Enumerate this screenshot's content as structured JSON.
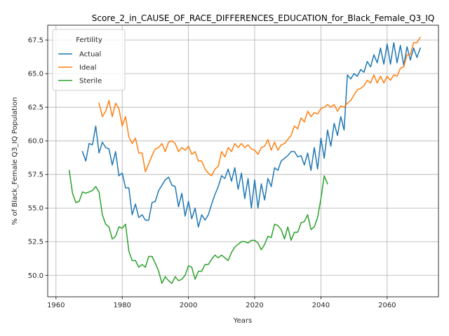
{
  "chart_data": {
    "type": "line",
    "title": "Score_2_in_CAUSE_OF_RACE_DIFFERENCES_EDUCATION_for_Black_Female_Q3_IQ",
    "xlabel": "Years",
    "ylabel": "% of Black_Female Q3_IQ Population",
    "xlim": [
      1957.5,
      2075.5
    ],
    "ylim": [
      48.4,
      68.6
    ],
    "xticks": [
      1960,
      1980,
      2000,
      2020,
      2040,
      2060
    ],
    "yticks": [
      50.0,
      52.5,
      55.0,
      57.5,
      60.0,
      62.5,
      65.0,
      67.5
    ],
    "grid": true,
    "legend": {
      "title": "Fertility",
      "placement": "upper left"
    },
    "series": [
      {
        "name": "Actual",
        "color": "#1f77b4",
        "x": [
          1968,
          1969,
          1970,
          1971,
          1972,
          1973,
          1974,
          1975,
          1976,
          1977,
          1978,
          1979,
          1980,
          1981,
          1982,
          1983,
          1984,
          1985,
          1986,
          1987,
          1988,
          1989,
          1990,
          1991,
          1992,
          1993,
          1994,
          1995,
          1996,
          1997,
          1998,
          1999,
          2000,
          2001,
          2002,
          2003,
          2004,
          2005,
          2006,
          2007,
          2008,
          2009,
          2010,
          2011,
          2012,
          2013,
          2014,
          2015,
          2016,
          2017,
          2018,
          2019,
          2020,
          2021,
          2022,
          2023,
          2024,
          2025,
          2026,
          2027,
          2028,
          2029,
          2030,
          2031,
          2032,
          2033,
          2034,
          2035,
          2036,
          2037,
          2038,
          2039,
          2040,
          2041,
          2042,
          2043,
          2044,
          2045,
          2046,
          2047,
          2048,
          2049,
          2050,
          2051,
          2052,
          2053,
          2054,
          2055,
          2056,
          2057,
          2058,
          2059,
          2060,
          2061,
          2062,
          2063,
          2064,
          2065,
          2066,
          2067,
          2068,
          2069,
          2070
        ],
        "y": [
          59.2,
          58.5,
          59.8,
          59.7,
          61.1,
          59.1,
          59.9,
          59.5,
          59.4,
          58.2,
          59.2,
          57.4,
          57.6,
          56.5,
          56.5,
          54.5,
          55.3,
          54.3,
          54.5,
          54.1,
          54.1,
          55.4,
          55.5,
          56.3,
          56.7,
          57.1,
          57.3,
          56.7,
          56.6,
          55.1,
          56.1,
          54.4,
          55.5,
          54.2,
          55.0,
          53.6,
          54.5,
          54.1,
          54.5,
          55.3,
          56.0,
          56.6,
          57.4,
          57.2,
          57.9,
          57.0,
          58.0,
          56.4,
          57.6,
          55.7,
          57.2,
          55.0,
          57.1,
          55.0,
          56.8,
          55.6,
          57.2,
          56.6,
          58.0,
          57.8,
          58.5,
          58.7,
          58.9,
          59.2,
          59.2,
          58.8,
          58.9,
          58.2,
          59.1,
          57.8,
          59.5,
          57.9,
          60.2,
          58.7,
          60.8,
          59.6,
          61.3,
          60.4,
          61.8,
          60.8,
          64.9,
          64.6,
          65.0,
          64.8,
          65.3,
          65.1,
          65.9,
          65.5,
          66.4,
          65.8,
          66.9,
          65.7,
          67.2,
          65.7,
          67.3,
          65.8,
          67.1,
          65.6,
          67.0,
          66.0,
          66.9,
          66.2,
          66.9
        ]
      },
      {
        "name": "Ideal",
        "color": "#ff7f0e",
        "x": [
          1973,
          1974,
          1975,
          1976,
          1977,
          1978,
          1979,
          1980,
          1981,
          1982,
          1983,
          1984,
          1985,
          1986,
          1987,
          1988,
          1989,
          1990,
          1991,
          1992,
          1993,
          1994,
          1995,
          1996,
          1997,
          1998,
          1999,
          2000,
          2001,
          2002,
          2003,
          2004,
          2005,
          2006,
          2007,
          2008,
          2009,
          2010,
          2011,
          2012,
          2013,
          2014,
          2015,
          2016,
          2017,
          2018,
          2019,
          2020,
          2021,
          2022,
          2023,
          2024,
          2025,
          2026,
          2027,
          2028,
          2029,
          2030,
          2031,
          2032,
          2033,
          2034,
          2035,
          2036,
          2037,
          2038,
          2039,
          2040,
          2041,
          2042,
          2043,
          2044,
          2045,
          2046,
          2047,
          2048,
          2049,
          2050,
          2051,
          2052,
          2053,
          2054,
          2055,
          2056,
          2057,
          2058,
          2059,
          2060,
          2061,
          2062,
          2063,
          2064,
          2065,
          2066,
          2067,
          2068,
          2069,
          2070
        ],
        "y": [
          62.8,
          61.8,
          62.2,
          63.0,
          61.8,
          62.8,
          62.4,
          61.1,
          61.8,
          60.3,
          59.8,
          60.2,
          59.1,
          59.1,
          57.7,
          58.3,
          58.9,
          59.4,
          59.5,
          59.8,
          59.2,
          59.9,
          60.0,
          59.8,
          59.2,
          59.5,
          59.3,
          59.6,
          59.0,
          59.2,
          58.5,
          58.5,
          57.9,
          57.6,
          57.4,
          57.9,
          58.1,
          59.2,
          58.8,
          59.5,
          59.2,
          59.8,
          59.5,
          59.8,
          59.5,
          59.7,
          59.4,
          59.3,
          59.0,
          59.5,
          59.6,
          60.1,
          59.3,
          59.9,
          59.3,
          59.7,
          59.8,
          60.1,
          60.4,
          61.1,
          60.9,
          61.7,
          61.4,
          62.2,
          61.8,
          62.1,
          62.0,
          62.4,
          62.5,
          62.7,
          62.5,
          62.7,
          62.2,
          62.6,
          62.5,
          62.8,
          63.0,
          63.4,
          63.8,
          63.9,
          64.1,
          64.5,
          64.3,
          64.9,
          64.3,
          64.8,
          64.3,
          64.8,
          64.5,
          64.9,
          64.8,
          65.4,
          65.5,
          66.4,
          66.4,
          67.3,
          67.3,
          67.7
        ]
      },
      {
        "name": "Sterile",
        "color": "#2ca02c",
        "x": [
          1964,
          1965,
          1966,
          1967,
          1968,
          1969,
          1970,
          1971,
          1972,
          1973,
          1974,
          1975,
          1976,
          1977,
          1978,
          1979,
          1980,
          1981,
          1982,
          1983,
          1984,
          1985,
          1986,
          1987,
          1988,
          1989,
          1990,
          1991,
          1992,
          1993,
          1994,
          1995,
          1996,
          1997,
          1998,
          1999,
          2000,
          2001,
          2002,
          2003,
          2004,
          2005,
          2006,
          2007,
          2008,
          2009,
          2010,
          2011,
          2012,
          2013,
          2014,
          2015,
          2016,
          2017,
          2018,
          2019,
          2020,
          2021,
          2022,
          2023,
          2024,
          2025,
          2026,
          2027,
          2028,
          2029,
          2030,
          2031,
          2032,
          2033,
          2034,
          2035,
          2036,
          2037,
          2038,
          2039,
          2040,
          2041,
          2042
        ],
        "y": [
          57.8,
          56.1,
          55.4,
          55.5,
          56.2,
          56.1,
          56.2,
          56.3,
          56.6,
          56.2,
          54.5,
          53.8,
          53.6,
          52.7,
          52.9,
          53.6,
          53.5,
          53.8,
          51.8,
          51.1,
          51.1,
          50.6,
          50.8,
          50.6,
          51.4,
          51.4,
          50.9,
          50.3,
          49.4,
          49.9,
          49.6,
          49.4,
          49.9,
          49.6,
          49.7,
          50.0,
          50.7,
          50.6,
          49.7,
          50.3,
          50.3,
          50.8,
          50.8,
          51.2,
          51.5,
          51.3,
          51.5,
          51.3,
          51.1,
          51.7,
          52.1,
          52.3,
          52.5,
          52.5,
          52.4,
          52.6,
          52.6,
          52.4,
          51.9,
          52.3,
          52.9,
          52.8,
          53.8,
          53.7,
          53.4,
          52.7,
          53.6,
          52.6,
          53.2,
          53.2,
          53.9,
          54.0,
          54.5,
          53.4,
          53.6,
          54.3,
          55.7,
          57.4,
          56.8
        ]
      }
    ]
  }
}
